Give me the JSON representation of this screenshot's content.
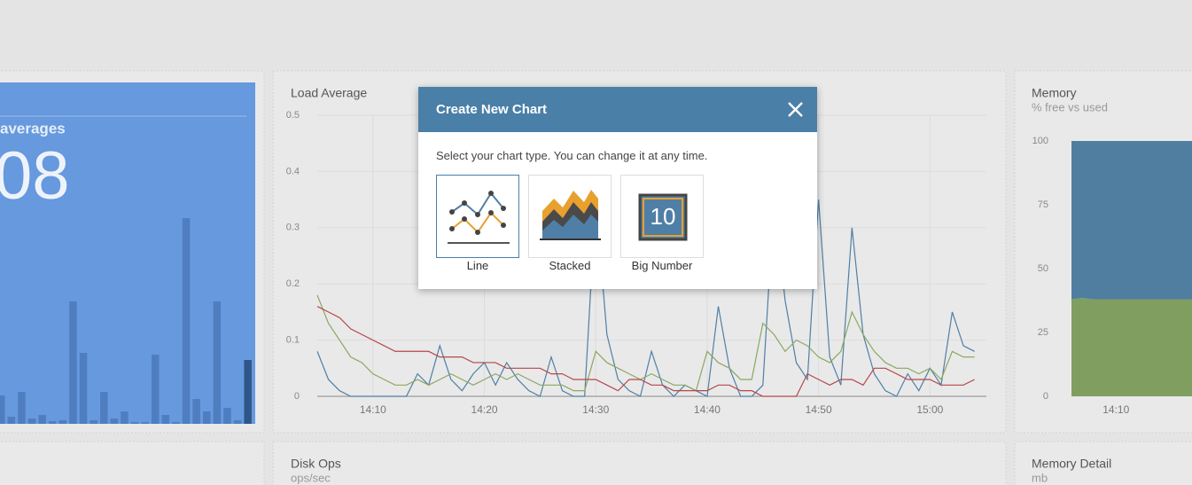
{
  "load_card": {
    "title": "averages",
    "value": "08",
    "bars": [
      32,
      8,
      36,
      6,
      10,
      3,
      4,
      138,
      80,
      4,
      36,
      6,
      14,
      2,
      2,
      78,
      10,
      2,
      232,
      28,
      14,
      138,
      18,
      4,
      72
    ]
  },
  "load_chart": {
    "title": "Load Average",
    "chart_data": {
      "type": "line",
      "categories": [
        null,
        null,
        null,
        null,
        null,
        "14:10",
        null,
        null,
        null,
        null,
        null,
        null,
        null,
        null,
        null,
        "14:20",
        null,
        null,
        null,
        null,
        null,
        null,
        null,
        null,
        null,
        "14:30",
        null,
        null,
        null,
        null,
        null,
        null,
        null,
        null,
        null,
        "14:40",
        null,
        null,
        null,
        null,
        null,
        null,
        null,
        null,
        null,
        "14:50",
        null,
        null,
        null,
        null,
        null,
        null,
        null,
        null,
        null,
        "15:00",
        null,
        null,
        null,
        null
      ],
      "series": [
        {
          "color": "#4f7fa6",
          "values": [
            0.08,
            0.03,
            0.01,
            0,
            0,
            0,
            0,
            0,
            0,
            0.04,
            0.02,
            0.09,
            0.03,
            0.01,
            0.04,
            0.06,
            0.02,
            0.06,
            0.03,
            0.01,
            0,
            0.07,
            0.01,
            0,
            0,
            0.35,
            0.11,
            0.03,
            0.01,
            0,
            0.08,
            0.02,
            0,
            0.02,
            0.01,
            0,
            0.16,
            0.05,
            0,
            0,
            0.02,
            0.35,
            0.17,
            0.06,
            0.03,
            0.35,
            0.07,
            0.02,
            0.3,
            0.11,
            0.04,
            0.01,
            0,
            0.04,
            0.01,
            0.05,
            0.02,
            0.15,
            0.09,
            0.08
          ]
        },
        {
          "color": "#8aa862",
          "values": [
            0.18,
            0.13,
            0.1,
            0.07,
            0.06,
            0.04,
            0.03,
            0.02,
            0.02,
            0.03,
            0.02,
            0.03,
            0.04,
            0.03,
            0.02,
            0.03,
            0.04,
            0.03,
            0.04,
            0.03,
            0.02,
            0.02,
            0.02,
            0.01,
            0.01,
            0.08,
            0.06,
            0.05,
            0.04,
            0.03,
            0.04,
            0.03,
            0.02,
            0.02,
            0.01,
            0.08,
            0.06,
            0.05,
            0.03,
            0.03,
            0.13,
            0.11,
            0.08,
            0.1,
            0.09,
            0.07,
            0.06,
            0.08,
            0.15,
            0.11,
            0.08,
            0.06,
            0.05,
            0.05,
            0.04,
            0.05,
            0.03,
            0.08,
            0.07,
            0.07
          ]
        },
        {
          "color": "#b5484a",
          "values": [
            0.16,
            0.15,
            0.14,
            0.12,
            0.11,
            0.1,
            0.09,
            0.08,
            0.08,
            0.08,
            0.08,
            0.07,
            0.07,
            0.07,
            0.06,
            0.06,
            0.06,
            0.05,
            0.05,
            0.05,
            0.05,
            0.04,
            0.04,
            0.03,
            0.03,
            0.03,
            0.02,
            0.01,
            0.03,
            0.03,
            0.02,
            0.02,
            0.01,
            0.01,
            0.01,
            0.01,
            0.02,
            0.02,
            0.01,
            0.01,
            0,
            0,
            0,
            0,
            0.04,
            0.03,
            0.02,
            0.03,
            0.03,
            0.02,
            0.05,
            0.05,
            0.04,
            0.03,
            0.03,
            0.03,
            0.02,
            0.02,
            0.02,
            0.03
          ]
        }
      ],
      "ylim": [
        0,
        0.5
      ],
      "yticks": [
        0,
        0.1,
        0.2,
        0.3,
        0.4,
        0.5
      ],
      "grid": true
    }
  },
  "memory_chart": {
    "title": "Memory",
    "subtitle": "% free vs used",
    "chart_data": {
      "type": "stacked-area",
      "categories": [
        null,
        null,
        null,
        null,
        "14:10",
        null,
        null,
        null,
        null,
        null,
        null,
        null
      ],
      "series": [
        {
          "color": "#7f9e60",
          "values": [
            38,
            38.5,
            38,
            38,
            38,
            38,
            38,
            38,
            38,
            38,
            38,
            38
          ]
        },
        {
          "color": "#4f7ea1",
          "values": [
            62,
            61.5,
            62,
            62,
            62,
            62,
            62,
            62,
            62,
            62,
            62,
            62
          ]
        }
      ],
      "ylim": [
        0,
        100
      ],
      "yticks": [
        0,
        25,
        50,
        75,
        100
      ]
    }
  },
  "disk_ops": {
    "title": "Disk Ops",
    "subtitle": "ops/sec"
  },
  "memory_detail": {
    "title": "Memory Detail",
    "subtitle": "mb"
  },
  "dialog": {
    "title": "Create New Chart",
    "instructions": "Select your chart type. You can change it at any time.",
    "options": [
      {
        "label": "Line"
      },
      {
        "label": "Stacked"
      },
      {
        "label": "Big Number",
        "icon_text": "10"
      }
    ]
  }
}
